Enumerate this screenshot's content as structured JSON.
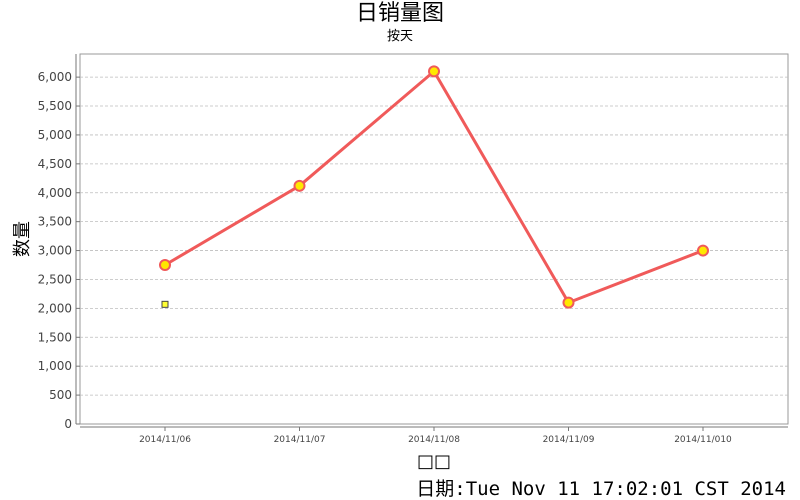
{
  "chart_data": {
    "type": "line",
    "title": "日销量图",
    "subtitle": "按天",
    "xlabel": "□□",
    "ylabel": "数量",
    "categories": [
      "2014/11/06",
      "2014/11/07",
      "2014/11/08",
      "2014/11/09",
      "2014/11/010"
    ],
    "series": [
      {
        "values": [
          2750,
          4120,
          6100,
          2100,
          3000
        ],
        "color": "#f05a5a",
        "marker_fill": "#ffe800"
      }
    ],
    "stray_marker": {
      "category": "2014/11/06",
      "value": 2070,
      "color": "#ffff33"
    },
    "ylim": [
      0,
      6400
    ],
    "yticks": [
      0,
      500,
      1000,
      1500,
      2000,
      2500,
      3000,
      3500,
      4000,
      4500,
      5000,
      5500,
      6000
    ],
    "ytick_labels": [
      "0",
      "500",
      "1,000",
      "1,500",
      "2,000",
      "2,500",
      "3,000",
      "3,500",
      "4,000",
      "4,500",
      "5,000",
      "5,500",
      "6,000"
    ],
    "grid": true,
    "legend": "none"
  },
  "footer": {
    "date_text": "日期:Tue Nov 11 17:02:01 CST 2014"
  }
}
